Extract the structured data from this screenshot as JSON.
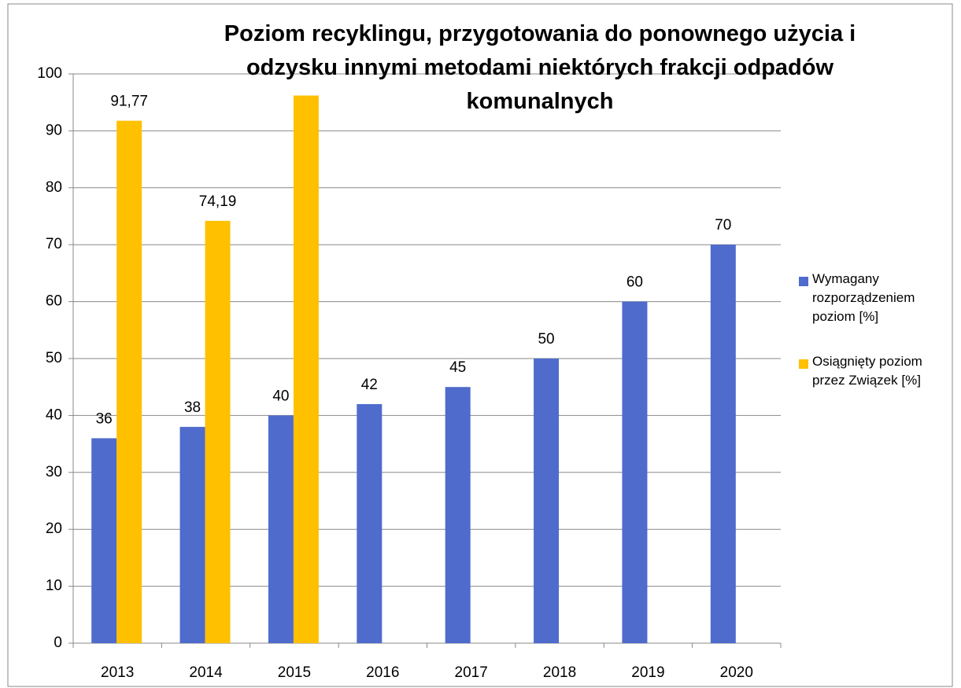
{
  "chart_data": {
    "type": "bar",
    "title": "Poziom recyklingu, przygotowania do ponownego użycia i odzysku innymi metodami niektórych frakcji odpadów komunalnych",
    "categories": [
      "2013",
      "2014",
      "2015",
      "2016",
      "2017",
      "2018",
      "2019",
      "2020"
    ],
    "series": [
      {
        "name": "Wymagany rozporządzeniem poziom [%]",
        "color": "#4f6bcc",
        "values": [
          36,
          38,
          40,
          42,
          45,
          50,
          60,
          70
        ]
      },
      {
        "name": "Osiągnięty poziom przez Związek [%]",
        "color": "#ffc000",
        "values": [
          91.77,
          74.19,
          96.2,
          null,
          null,
          null,
          null,
          null
        ],
        "value_labels": [
          "91,77",
          "74,19",
          null,
          null,
          null,
          null,
          null,
          null
        ]
      }
    ],
    "ylim": [
      0,
      100
    ],
    "yticks": [
      0,
      10,
      20,
      30,
      40,
      50,
      60,
      70,
      80,
      90,
      100
    ],
    "grid": true,
    "legend": "right"
  }
}
